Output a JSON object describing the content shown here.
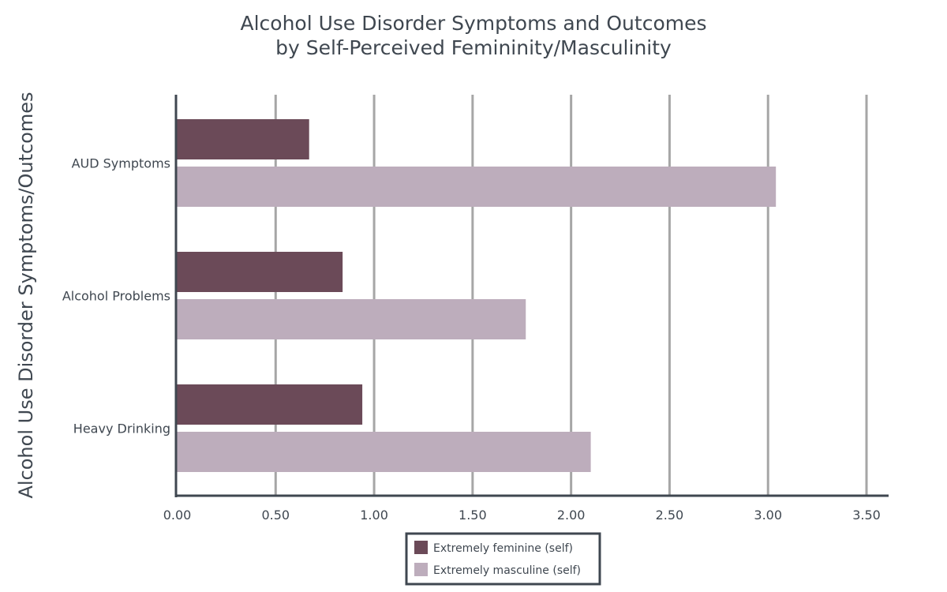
{
  "chart_data": {
    "type": "bar",
    "orientation": "horizontal",
    "title": [
      "Alcohol Use Disorder Symptoms and Outcomes",
      "by Self-Perceived Femininity/Masculinity"
    ],
    "ylabel": "Alcohol Use Disorder Symptoms/Outcomes",
    "xlabel": "",
    "categories": [
      "AUD Symptoms",
      "Alcohol Problems",
      "Heavy Drinking"
    ],
    "series": [
      {
        "name": "Extremely feminine (self)",
        "color": "#6b4a58",
        "values": [
          0.67,
          0.84,
          0.94
        ]
      },
      {
        "name": "Extremely masculine (self)",
        "color": "#bdadbc",
        "values": [
          3.04,
          1.77,
          2.1
        ]
      }
    ],
    "xlim": [
      0,
      3.5
    ],
    "xticks": [
      "0.00",
      "0.50",
      "1.00",
      "1.50",
      "2.00",
      "2.50",
      "3.00",
      "3.50"
    ],
    "xtick_values": [
      0,
      0.5,
      1,
      1.5,
      2,
      2.5,
      3,
      3.5
    ],
    "grid": "vertical",
    "legend_position": "bottom-center"
  }
}
